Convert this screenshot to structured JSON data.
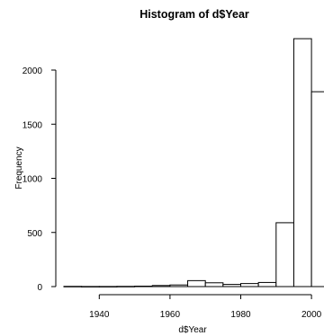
{
  "chart_data": {
    "type": "bar",
    "title": "Histogram of d$Year",
    "xlabel": "d$Year",
    "ylabel": "Frequency",
    "bin_width": 5,
    "bins": [
      {
        "start": 1930,
        "end": 1935,
        "count": 2
      },
      {
        "start": 1935,
        "end": 1940,
        "count": 1
      },
      {
        "start": 1940,
        "end": 1945,
        "count": 1
      },
      {
        "start": 1945,
        "end": 1950,
        "count": 2
      },
      {
        "start": 1950,
        "end": 1955,
        "count": 4
      },
      {
        "start": 1955,
        "end": 1960,
        "count": 10
      },
      {
        "start": 1960,
        "end": 1965,
        "count": 15
      },
      {
        "start": 1965,
        "end": 1970,
        "count": 55
      },
      {
        "start": 1970,
        "end": 1975,
        "count": 35
      },
      {
        "start": 1975,
        "end": 1980,
        "count": 20
      },
      {
        "start": 1980,
        "end": 1985,
        "count": 28
      },
      {
        "start": 1985,
        "end": 1990,
        "count": 38
      },
      {
        "start": 1990,
        "end": 1995,
        "count": 590
      },
      {
        "start": 1995,
        "end": 2000,
        "count": 2290
      },
      {
        "start": 2000,
        "end": 2005,
        "count": 1800
      }
    ],
    "xlim": [
      1930,
      2005
    ],
    "ylim": [
      0,
      2300
    ],
    "x_ticks": [
      1940,
      1960,
      1980,
      2000
    ],
    "y_ticks": [
      0,
      500,
      1000,
      1500,
      2000
    ],
    "grid": false,
    "legend": "none",
    "bar_fill": "#ffffff",
    "bar_stroke": "#000000"
  }
}
